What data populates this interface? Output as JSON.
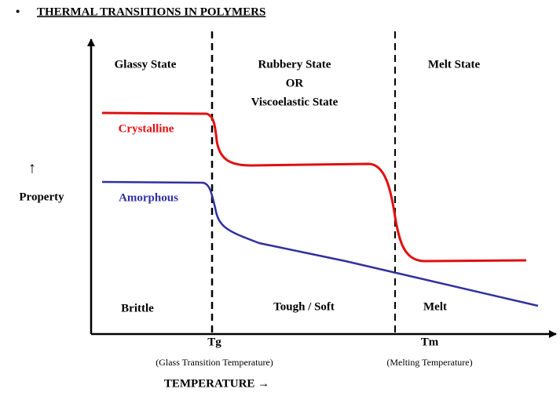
{
  "header": {
    "bullet": "•",
    "title": "THERMAL TRANSITIONS IN POLYMERS"
  },
  "regions": [
    {
      "label": "Glassy State",
      "property": "Brittle"
    },
    {
      "label": [
        "Rubbery State",
        "OR",
        "Viscoelastic State"
      ],
      "property": "Tough / Soft"
    },
    {
      "label": "Melt State",
      "property": "Melt"
    }
  ],
  "curves": [
    {
      "label": "Crystalline"
    },
    {
      "label": "Amorphous"
    }
  ],
  "y_axis": {
    "arrow": "↑",
    "label": "Property"
  },
  "x_axis": {
    "label": "TEMPERATURE →"
  },
  "transitions": [
    {
      "symbol": "Tg",
      "description": "(Glass Transition Temperature)"
    },
    {
      "symbol": "Tm",
      "description": "(Melting Temperature)"
    }
  ]
}
